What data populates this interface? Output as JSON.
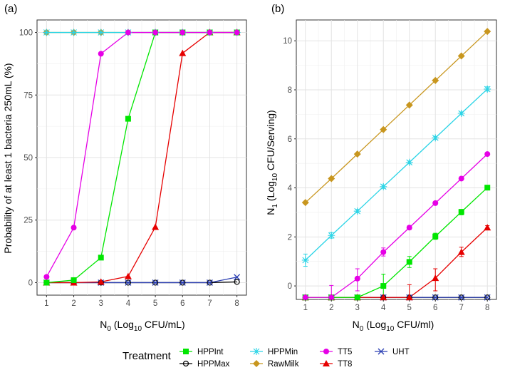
{
  "chart_data": [
    {
      "panel_label": "(a)",
      "type": "line",
      "xlabel_parts": [
        "N",
        "0",
        " (Log",
        "10",
        " CFU/mL)"
      ],
      "ylabel": "Probability of at least 1 bacteria 250mL (%)",
      "xlim": [
        0.65,
        8.35
      ],
      "ylim": [
        -5,
        105
      ],
      "x_ticks": [
        1,
        2,
        3,
        4,
        5,
        6,
        7,
        8
      ],
      "y_ticks": [
        0,
        25,
        50,
        75,
        100
      ],
      "grid": true,
      "x": [
        1,
        2,
        3,
        4,
        5,
        6,
        7,
        8
      ],
      "series": [
        {
          "name": "HPPInt",
          "values": [
            0,
            1,
            10,
            65.5,
            100,
            100,
            100,
            100
          ]
        },
        {
          "name": "HPPMax",
          "values": [
            0,
            0,
            0,
            0,
            0,
            0,
            0,
            0.3
          ]
        },
        {
          "name": "HPPMin",
          "values": [
            100,
            100,
            100,
            100,
            100,
            100,
            100,
            100
          ]
        },
        {
          "name": "RawMilk",
          "values": [
            100,
            100,
            100,
            100,
            100,
            100,
            100,
            100
          ]
        },
        {
          "name": "TT5",
          "values": [
            2.3,
            22,
            91.5,
            100,
            100,
            100,
            100,
            100
          ]
        },
        {
          "name": "TT8",
          "values": [
            0,
            0,
            0.3,
            2.5,
            22.2,
            91.7,
            100,
            100
          ]
        },
        {
          "name": "UHT",
          "values": [
            0,
            0,
            0,
            0,
            0,
            0,
            0,
            2.2
          ]
        }
      ]
    },
    {
      "panel_label": "(b)",
      "type": "line",
      "xlabel_parts": [
        "N",
        "0",
        " (Log",
        "10",
        " CFU/ml)"
      ],
      "ylabel_parts": [
        "N",
        "1",
        " (Log",
        "10",
        " CFU/Serving)"
      ],
      "xlim": [
        0.65,
        8.35
      ],
      "ylim": [
        -0.55,
        10.85
      ],
      "x_ticks": [
        1,
        2,
        3,
        4,
        5,
        6,
        7,
        8
      ],
      "y_ticks": [
        0,
        2,
        4,
        6,
        8,
        10
      ],
      "grid": true,
      "x": [
        1,
        2,
        3,
        4,
        5,
        6,
        7,
        8
      ],
      "series": [
        {
          "name": "HPPInt",
          "values": [
            -0.47,
            -0.47,
            -0.47,
            0.0,
            0.98,
            2.02,
            3.02,
            4.01
          ],
          "errors": [
            null,
            null,
            null,
            [
              -0.47,
              0.48
            ],
            [
              0.75,
              1.2
            ],
            [
              1.9,
              2.15
            ],
            [
              2.9,
              3.12
            ],
            [
              3.92,
              4.1
            ]
          ]
        },
        {
          "name": "HPPMax",
          "values": [
            -0.47,
            -0.47,
            -0.47,
            -0.47,
            -0.47,
            -0.47,
            -0.47,
            -0.47
          ]
        },
        {
          "name": "HPPMin",
          "values": [
            1.05,
            2.06,
            3.05,
            4.05,
            5.04,
            6.04,
            7.04,
            8.03
          ],
          "errors": [
            [
              0.8,
              1.3
            ],
            [
              1.95,
              2.18
            ],
            [
              2.98,
              3.12
            ],
            [
              3.98,
              4.12
            ],
            [
              4.98,
              5.1
            ],
            [
              5.98,
              6.1
            ],
            [
              6.98,
              7.1
            ],
            [
              7.95,
              8.12
            ]
          ]
        },
        {
          "name": "RawMilk",
          "values": [
            3.4,
            4.38,
            5.38,
            6.38,
            7.38,
            8.38,
            9.38,
            10.38
          ]
        },
        {
          "name": "TT5",
          "values": [
            -0.47,
            -0.47,
            0.3,
            1.38,
            2.38,
            3.38,
            4.38,
            5.38
          ],
          "errors": [
            null,
            [
              -0.47,
              0.02
            ],
            [
              -0.2,
              0.7
            ],
            [
              1.22,
              1.55
            ],
            [
              2.3,
              2.45
            ],
            [
              3.32,
              3.44
            ],
            [
              4.32,
              4.44
            ],
            [
              5.33,
              5.43
            ]
          ]
        },
        {
          "name": "TT8",
          "values": [
            -0.47,
            -0.47,
            -0.47,
            -0.47,
            -0.47,
            0.32,
            1.38,
            2.38
          ],
          "errors": [
            null,
            null,
            null,
            null,
            [
              -0.47,
              0.05
            ],
            [
              -0.2,
              0.7
            ],
            [
              1.2,
              1.58
            ],
            [
              2.3,
              2.46
            ]
          ]
        },
        {
          "name": "UHT",
          "values": [
            -0.47,
            -0.47,
            -0.47,
            -0.47,
            -0.47,
            -0.47,
            -0.47,
            -0.47
          ]
        }
      ]
    }
  ],
  "legend": {
    "title": "Treatment",
    "placement": "bottom",
    "entries": [
      {
        "name": "HPPInt",
        "color": "#00e600",
        "shape": "square"
      },
      {
        "name": "HPPMin",
        "color": "#2ad4e6",
        "shape": "asterisk"
      },
      {
        "name": "TT5",
        "color": "#e600e6",
        "shape": "circle"
      },
      {
        "name": "UHT",
        "color": "#2b3fb3",
        "shape": "cross"
      },
      {
        "name": "HPPMax",
        "color": "#000000",
        "shape": "open-circle"
      },
      {
        "name": "RawMilk",
        "color": "#c8961e",
        "shape": "diamond"
      },
      {
        "name": "TT8",
        "color": "#e60000",
        "shape": "triangle"
      }
    ]
  }
}
